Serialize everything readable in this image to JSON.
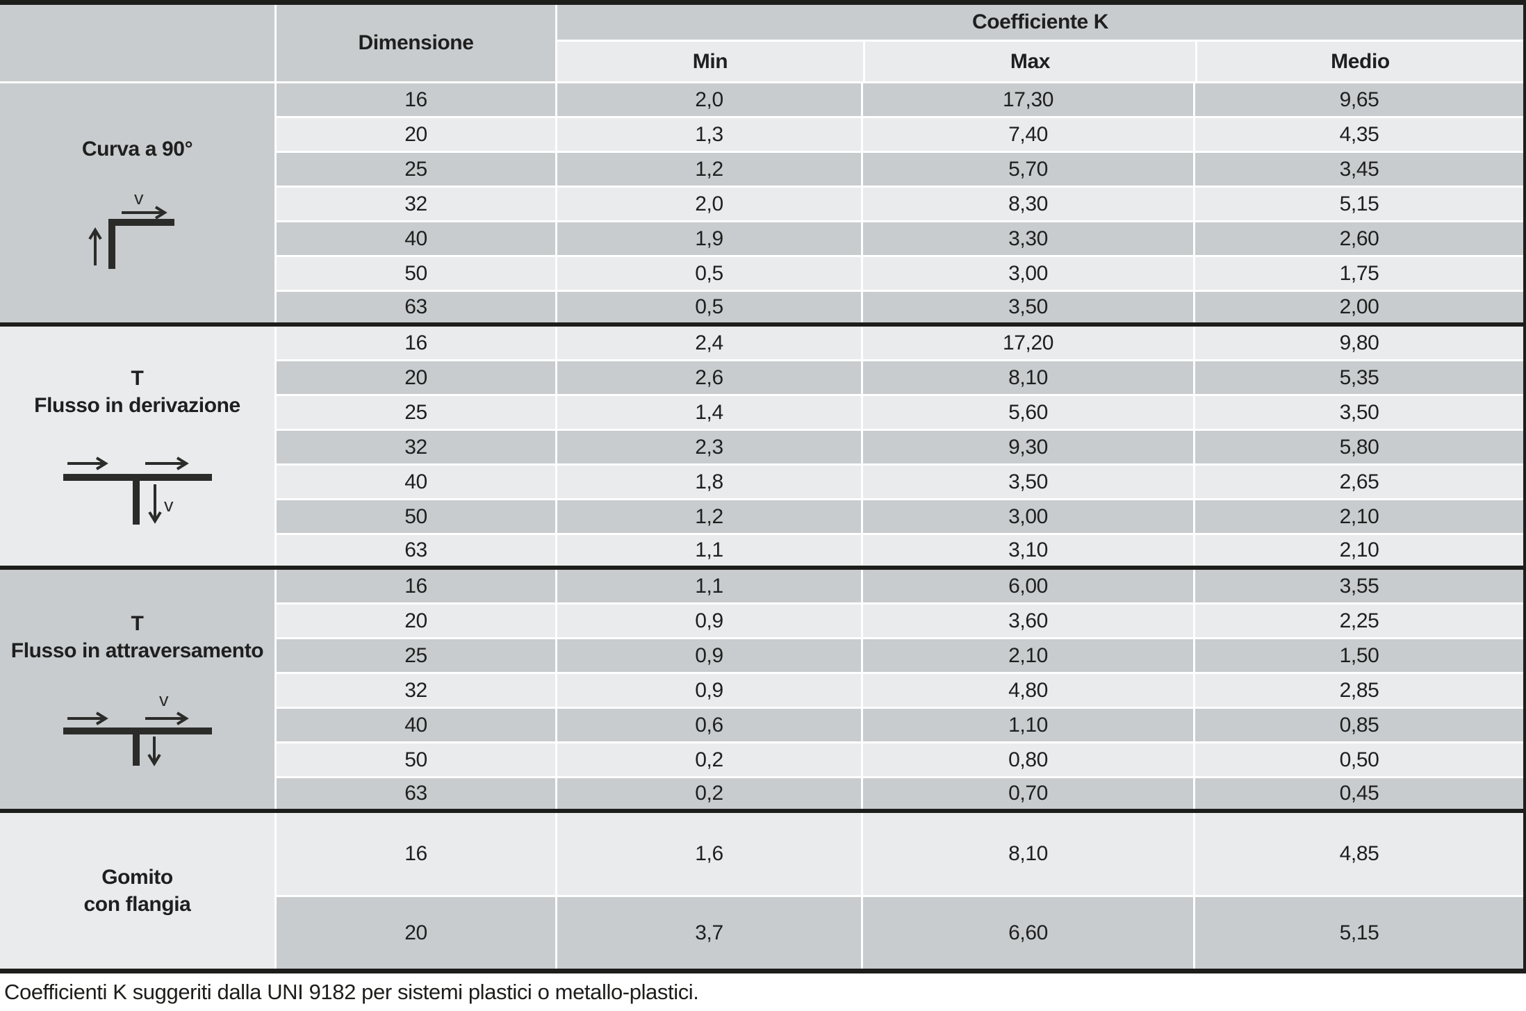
{
  "colors": {
    "row_dark": "#c8ccce",
    "row_light": "#e9ebec",
    "rule_black": "#1d1d1b",
    "separator_white": "#ffffff",
    "text": "#1f1f1f"
  },
  "table": {
    "header": {
      "dimension_label": "Dimensione",
      "coefficient_group_label": "Coefficiente K",
      "columns": [
        "Min",
        "Max",
        "Medio"
      ]
    },
    "sections": [
      {
        "label": "Curva a 90°",
        "diagram_velocity_label": "v",
        "rows": [
          {
            "dimensione": "16",
            "min": "2,0",
            "max": "17,30",
            "medio": "9,65"
          },
          {
            "dimensione": "20",
            "min": "1,3",
            "max": "7,40",
            "medio": "4,35"
          },
          {
            "dimensione": "25",
            "min": "1,2",
            "max": "5,70",
            "medio": "3,45"
          },
          {
            "dimensione": "32",
            "min": "2,0",
            "max": "8,30",
            "medio": "5,15"
          },
          {
            "dimensione": "40",
            "min": "1,9",
            "max": "3,30",
            "medio": "2,60"
          },
          {
            "dimensione": "50",
            "min": "0,5",
            "max": "3,00",
            "medio": "1,75"
          },
          {
            "dimensione": "63",
            "min": "0,5",
            "max": "3,50",
            "medio": "2,00"
          }
        ]
      },
      {
        "label": "T\nFlusso in derivazione",
        "diagram_velocity_label": "v",
        "rows": [
          {
            "dimensione": "16",
            "min": "2,4",
            "max": "17,20",
            "medio": "9,80"
          },
          {
            "dimensione": "20",
            "min": "2,6",
            "max": "8,10",
            "medio": "5,35"
          },
          {
            "dimensione": "25",
            "min": "1,4",
            "max": "5,60",
            "medio": "3,50"
          },
          {
            "dimensione": "32",
            "min": "2,3",
            "max": "9,30",
            "medio": "5,80"
          },
          {
            "dimensione": "40",
            "min": "1,8",
            "max": "3,50",
            "medio": "2,65"
          },
          {
            "dimensione": "50",
            "min": "1,2",
            "max": "3,00",
            "medio": "2,10"
          },
          {
            "dimensione": "63",
            "min": "1,1",
            "max": "3,10",
            "medio": "2,10"
          }
        ]
      },
      {
        "label": "T\nFlusso in attraversamento",
        "diagram_velocity_label": "v",
        "rows": [
          {
            "dimensione": "16",
            "min": "1,1",
            "max": "6,00",
            "medio": "3,55"
          },
          {
            "dimensione": "20",
            "min": "0,9",
            "max": "3,60",
            "medio": "2,25"
          },
          {
            "dimensione": "25",
            "min": "0,9",
            "max": "2,10",
            "medio": "1,50"
          },
          {
            "dimensione": "32",
            "min": "0,9",
            "max": "4,80",
            "medio": "2,85"
          },
          {
            "dimensione": "40",
            "min": "0,6",
            "max": "1,10",
            "medio": "0,85"
          },
          {
            "dimensione": "50",
            "min": "0,2",
            "max": "0,80",
            "medio": "0,50"
          },
          {
            "dimensione": "63",
            "min": "0,2",
            "max": "0,70",
            "medio": "0,45"
          }
        ]
      },
      {
        "label": "Gomito\ncon flangia",
        "rows": [
          {
            "dimensione": "16",
            "min": "1,6",
            "max": "8,10",
            "medio": "4,85"
          },
          {
            "dimensione": "20",
            "min": "3,7",
            "max": "6,60",
            "medio": "5,15"
          }
        ]
      }
    ],
    "footer_note": "Coefficienti K suggeriti dalla UNI 9182 per sistemi plastici o metallo-plastici."
  }
}
